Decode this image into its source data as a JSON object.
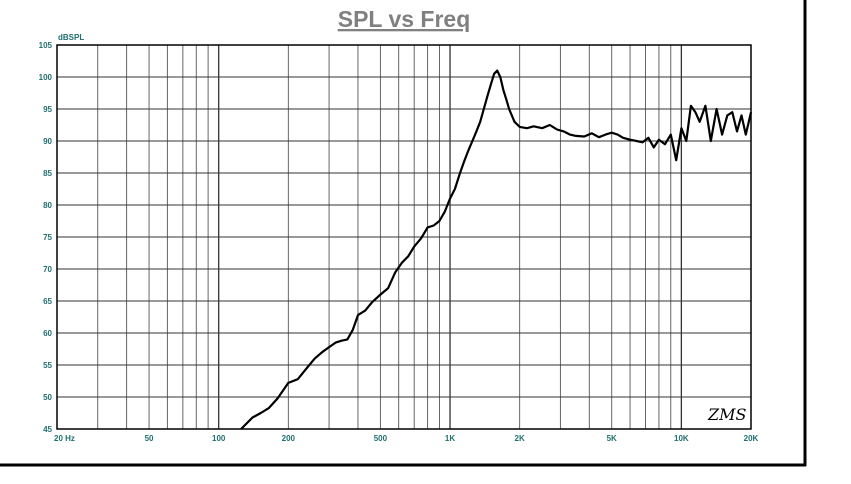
{
  "chart_data": {
    "type": "line",
    "title": "SPL vs Freq",
    "ylabel": "dBSPL",
    "xscale": "log",
    "xlim": [
      20,
      20000
    ],
    "ylim": [
      45,
      105
    ],
    "grid": true,
    "yticks": [
      45,
      50,
      55,
      60,
      65,
      70,
      75,
      80,
      85,
      90,
      95,
      100,
      105
    ],
    "xticks": [
      {
        "value": 20,
        "label": "20  Hz"
      },
      {
        "value": 50,
        "label": "50"
      },
      {
        "value": 100,
        "label": "100"
      },
      {
        "value": 200,
        "label": "200"
      },
      {
        "value": 500,
        "label": "500"
      },
      {
        "value": 1000,
        "label": "1K"
      },
      {
        "value": 2000,
        "label": "2K"
      },
      {
        "value": 5000,
        "label": "5K"
      },
      {
        "value": 10000,
        "label": "10K"
      },
      {
        "value": 20000,
        "label": "20K"
      }
    ],
    "series": [
      {
        "color": "#000000",
        "x": [
          125,
          140,
          152,
          165,
          180,
          200,
          220,
          240,
          260,
          280,
          300,
          320,
          340,
          360,
          380,
          400,
          430,
          460,
          500,
          540,
          580,
          620,
          660,
          700,
          750,
          800,
          850,
          900,
          950,
          1000,
          1050,
          1100,
          1150,
          1200,
          1250,
          1300,
          1350,
          1400,
          1450,
          1500,
          1550,
          1600,
          1650,
          1700,
          1750,
          1800,
          1900,
          2000,
          2150,
          2300,
          2500,
          2700,
          2900,
          3100,
          3300,
          3500,
          3800,
          4100,
          4400,
          4700,
          5000,
          5300,
          5600,
          6000,
          6400,
          6800,
          7200,
          7600,
          8000,
          8500,
          9000,
          9500,
          10000,
          10500,
          11000,
          11500,
          12000,
          12700,
          13400,
          14200,
          15000,
          15800,
          16600,
          17400,
          18200,
          19000,
          20000
        ],
        "y": [
          45,
          46.8,
          47.5,
          48.3,
          49.8,
          52.2,
          52.8,
          54.5,
          56.0,
          57.0,
          57.8,
          58.5,
          58.8,
          59.0,
          60.5,
          62.8,
          63.5,
          64.8,
          66.0,
          67.0,
          69.5,
          71.0,
          72.0,
          73.5,
          74.8,
          76.5,
          76.8,
          77.5,
          79.0,
          81.0,
          82.5,
          84.8,
          86.8,
          88.5,
          90.0,
          91.5,
          93.0,
          95.0,
          97.0,
          98.8,
          100.5,
          101.0,
          100.0,
          98.0,
          96.5,
          95.0,
          93.0,
          92.2,
          92.0,
          92.3,
          92.0,
          92.5,
          91.8,
          91.5,
          91.0,
          90.8,
          90.7,
          91.2,
          90.6,
          91.0,
          91.3,
          91.0,
          90.5,
          90.2,
          90.0,
          89.8,
          90.5,
          89.0,
          90.2,
          89.5,
          91.0,
          87.0,
          92.0,
          90.0,
          95.5,
          94.5,
          93.0,
          95.5,
          90.0,
          95.0,
          91.0,
          94.0,
          94.5,
          91.5,
          94.0,
          91.0,
          94.5
        ]
      }
    ]
  },
  "signature": "ZMS"
}
